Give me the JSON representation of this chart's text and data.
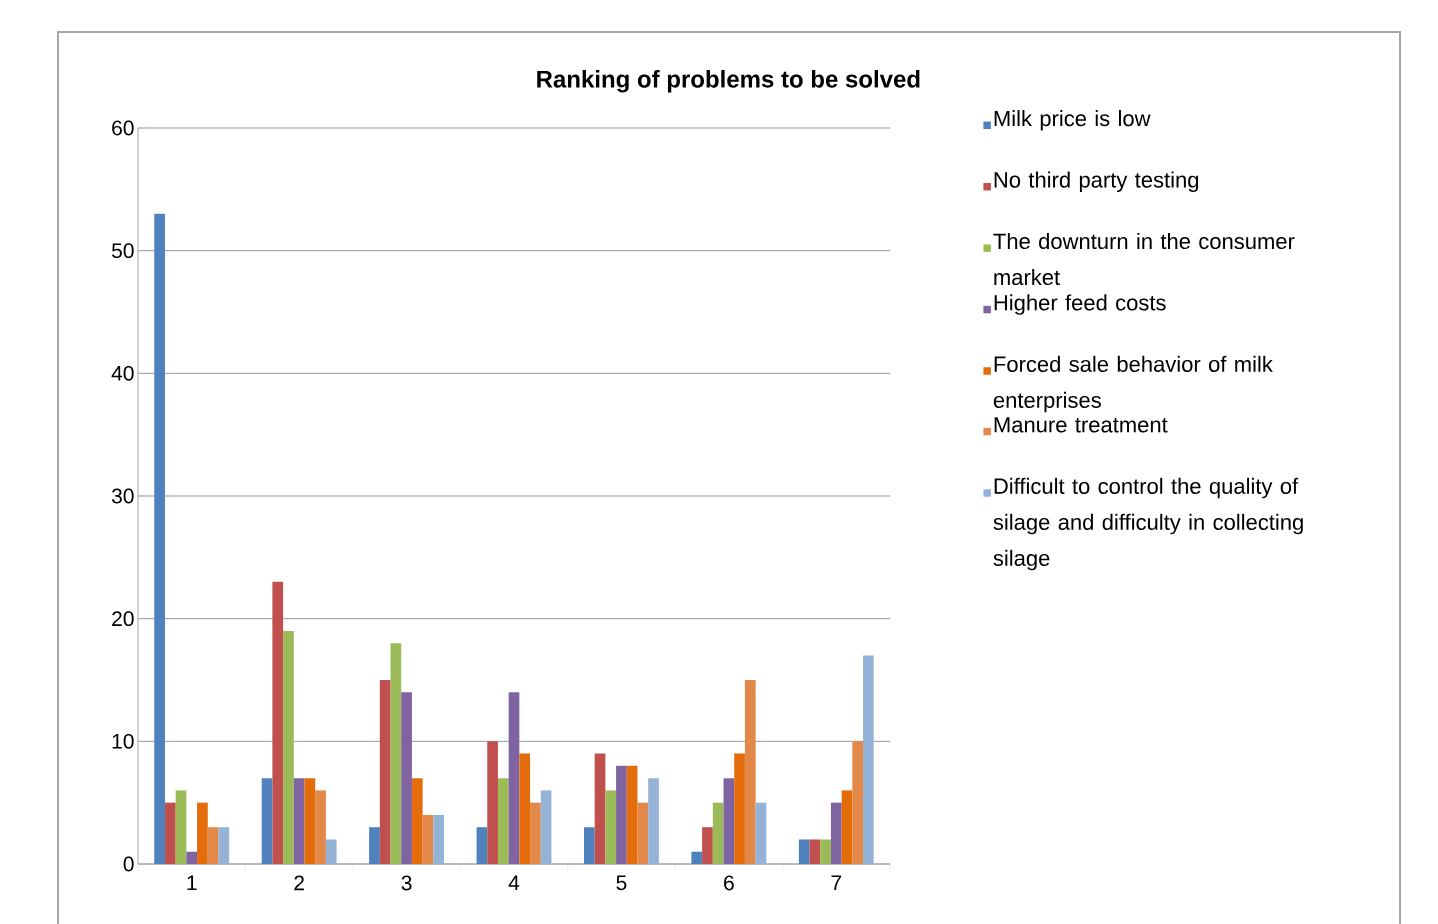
{
  "chart_data": {
    "type": "bar",
    "title": "Ranking of problems to be solved",
    "categories": [
      "1",
      "2",
      "3",
      "4",
      "5",
      "6",
      "7"
    ],
    "series": [
      {
        "name": "Milk price is low",
        "color": "#4f81bd",
        "values": [
          53,
          7,
          3,
          3,
          3,
          1,
          2
        ]
      },
      {
        "name": "No third party testing",
        "color": "#c0504d",
        "values": [
          5,
          23,
          15,
          10,
          9,
          3,
          2
        ]
      },
      {
        "name": "The downturn in the consumer market",
        "color": "#9bbb59",
        "values": [
          6,
          19,
          18,
          7,
          6,
          5,
          2
        ]
      },
      {
        "name": "Higher feed costs",
        "color": "#8064a2",
        "values": [
          1,
          7,
          14,
          14,
          8,
          7,
          5
        ]
      },
      {
        "name": "Forced sale behavior of milk enterprises",
        "color": "#e46c0a",
        "values": [
          5,
          7,
          7,
          9,
          8,
          9,
          6
        ]
      },
      {
        "name": "Manure treatment",
        "color": "#e2894a",
        "values": [
          3,
          6,
          4,
          5,
          5,
          15,
          10
        ]
      },
      {
        "name": "Difficult to control the quality of silage and difficulty in collecting silage",
        "color": "#95b3d7",
        "values": [
          3,
          2,
          4,
          6,
          7,
          5,
          17
        ]
      }
    ],
    "ylim": [
      0,
      60
    ],
    "yticks": [
      0,
      10,
      20,
      30,
      40,
      50,
      60
    ],
    "grid": "y",
    "legend": "right"
  }
}
